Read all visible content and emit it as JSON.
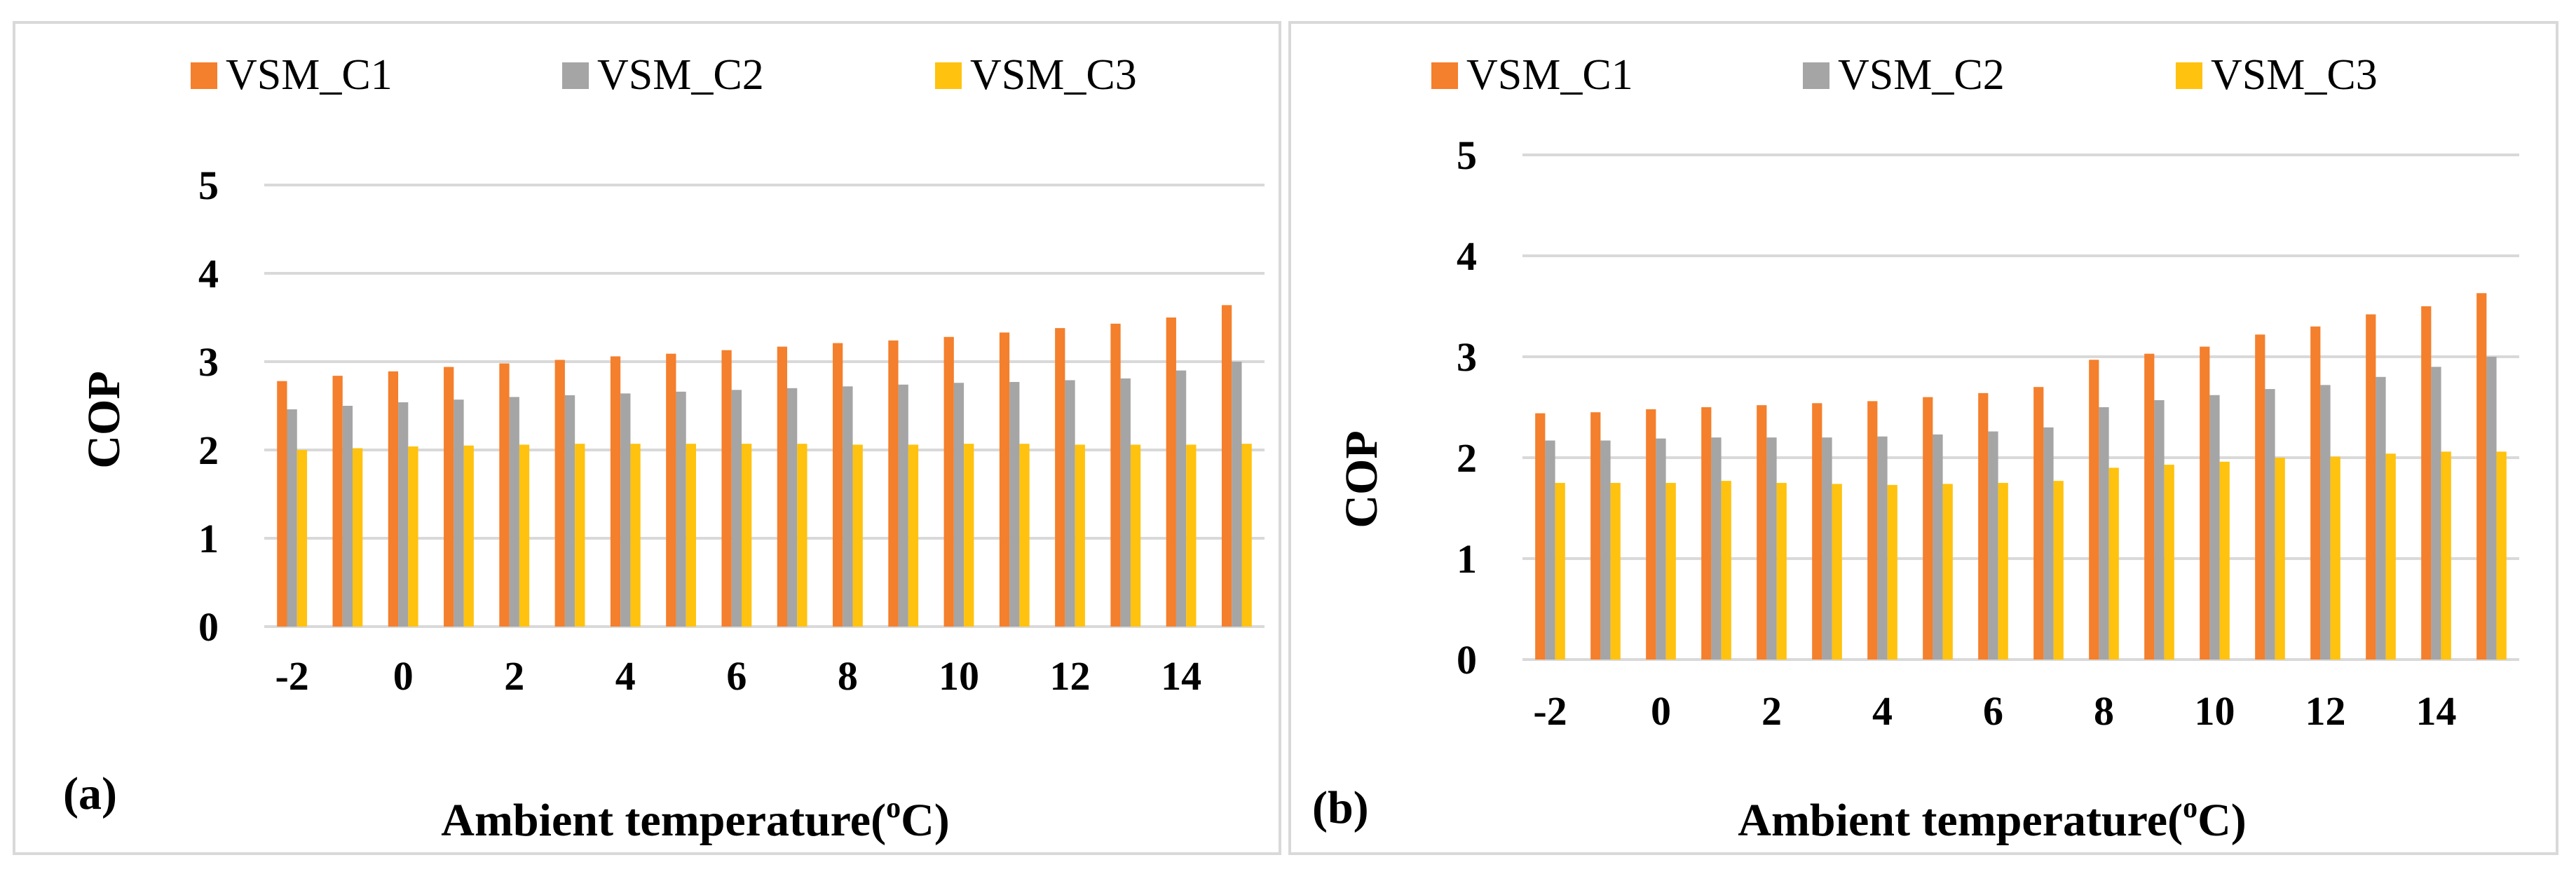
{
  "colors": {
    "VSM_C1": "#f47f2c",
    "VSM_C2": "#a5a5a5",
    "VSM_C3": "#ffc20e",
    "grid": "#d9d9d9"
  },
  "chart_data": [
    {
      "type": "bar",
      "panel_label": "(a)",
      "legend": [
        "VSM_C1",
        "VSM_C2",
        "VSM_C3"
      ],
      "legend_position": "top",
      "xlabel_main": "Ambient temperature(",
      "xlabel_sup": "o",
      "xlabel_end": "C)",
      "ylabel": "COP",
      "ylim": [
        0,
        5
      ],
      "yticks": [
        "0",
        "1",
        "2",
        "3",
        "4",
        "5"
      ],
      "grid": true,
      "categories": [
        -2,
        -1,
        0,
        1,
        2,
        3,
        4,
        5,
        6,
        7,
        8,
        9,
        10,
        11,
        12,
        13,
        14,
        15
      ],
      "xtick_labels": [
        "-2",
        "0",
        "2",
        "4",
        "6",
        "8",
        "10",
        "12",
        "14"
      ],
      "series": [
        {
          "name": "VSM_C1",
          "values": [
            2.78,
            2.84,
            2.89,
            2.94,
            2.98,
            3.02,
            3.06,
            3.09,
            3.13,
            3.17,
            3.21,
            3.24,
            3.28,
            3.33,
            3.38,
            3.43,
            3.5,
            3.64
          ]
        },
        {
          "name": "VSM_C2",
          "values": [
            2.46,
            2.5,
            2.54,
            2.57,
            2.6,
            2.62,
            2.64,
            2.66,
            2.68,
            2.7,
            2.72,
            2.74,
            2.76,
            2.77,
            2.79,
            2.81,
            2.9,
            3.0
          ]
        },
        {
          "name": "VSM_C3",
          "values": [
            2.0,
            2.02,
            2.04,
            2.05,
            2.06,
            2.07,
            2.07,
            2.07,
            2.07,
            2.07,
            2.06,
            2.06,
            2.07,
            2.07,
            2.06,
            2.06,
            2.06,
            2.07
          ]
        }
      ]
    },
    {
      "type": "bar",
      "panel_label": "(b)",
      "legend": [
        "VSM_C1",
        "VSM_C2",
        "VSM_C3"
      ],
      "legend_position": "top",
      "xlabel_main": "Ambient temperature(",
      "xlabel_sup": "o",
      "xlabel_end": "C)",
      "ylabel": "COP",
      "ylim": [
        0,
        5
      ],
      "yticks": [
        "0",
        "1",
        "2",
        "3",
        "4",
        "5"
      ],
      "grid": true,
      "categories": [
        -2,
        -1,
        0,
        1,
        2,
        3,
        4,
        5,
        6,
        7,
        8,
        9,
        10,
        11,
        12,
        13,
        14,
        15
      ],
      "xtick_labels": [
        "-2",
        "0",
        "2",
        "4",
        "6",
        "8",
        "10",
        "12",
        "14"
      ],
      "series": [
        {
          "name": "VSM_C1",
          "values": [
            2.44,
            2.45,
            2.48,
            2.5,
            2.52,
            2.54,
            2.56,
            2.6,
            2.64,
            2.7,
            2.97,
            3.03,
            3.1,
            3.22,
            3.3,
            3.42,
            3.5,
            3.63
          ]
        },
        {
          "name": "VSM_C2",
          "values": [
            2.17,
            2.17,
            2.19,
            2.2,
            2.2,
            2.2,
            2.21,
            2.23,
            2.26,
            2.3,
            2.5,
            2.57,
            2.62,
            2.68,
            2.72,
            2.8,
            2.9,
            3.0
          ]
        },
        {
          "name": "VSM_C3",
          "values": [
            1.75,
            1.75,
            1.75,
            1.77,
            1.75,
            1.74,
            1.73,
            1.74,
            1.75,
            1.77,
            1.9,
            1.93,
            1.96,
            2.0,
            2.01,
            2.04,
            2.06,
            2.06
          ]
        }
      ]
    }
  ]
}
